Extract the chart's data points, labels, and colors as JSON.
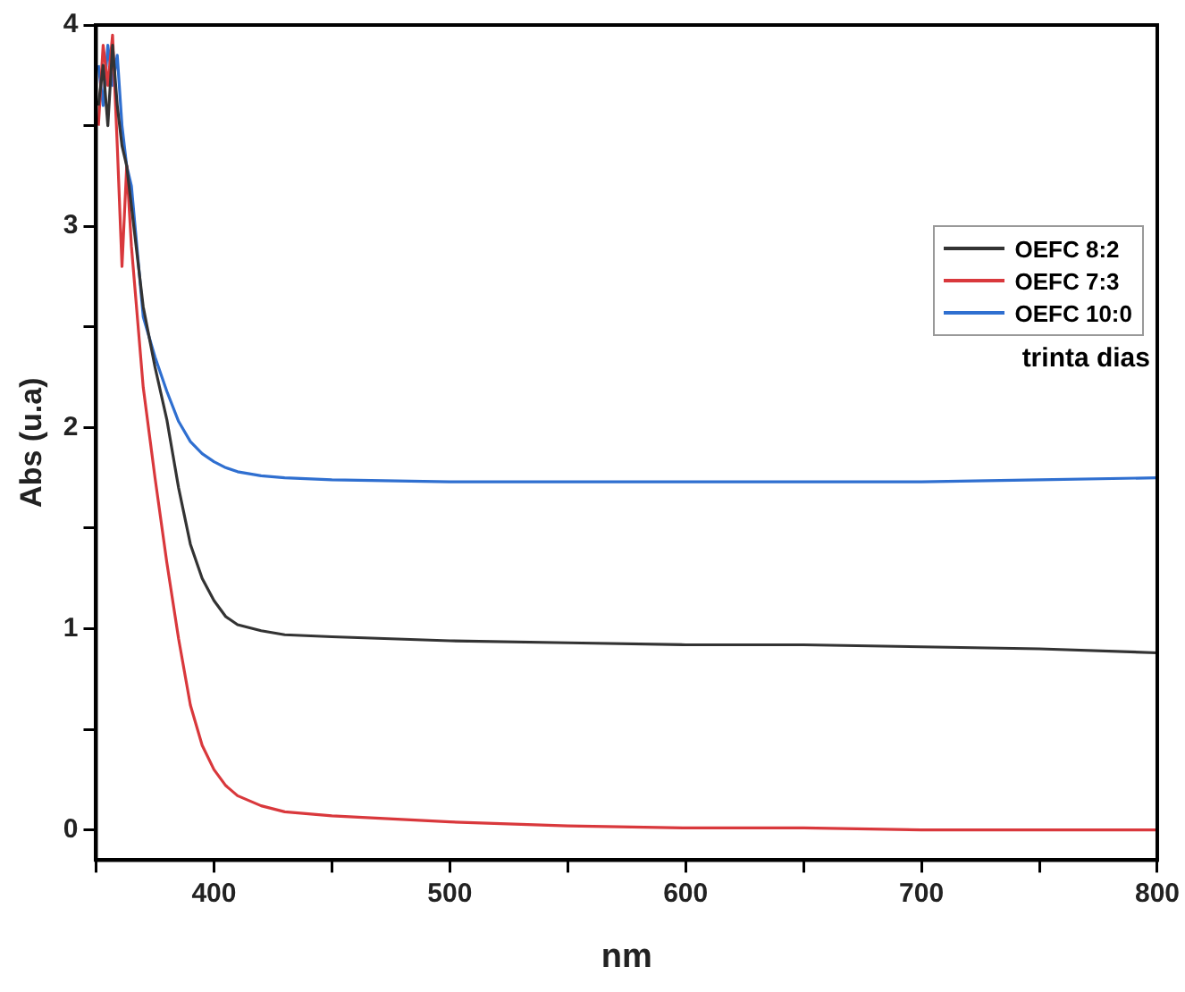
{
  "chart_data": {
    "type": "line",
    "xlabel": "nm",
    "ylabel": "Abs (u.a)",
    "xlim": [
      350,
      800
    ],
    "xticks": [
      {
        "value": 350,
        "label": null
      },
      400,
      {
        "value": 450,
        "label": null
      },
      500,
      {
        "value": 550,
        "label": null
      },
      600,
      {
        "value": 650,
        "label": null
      },
      700,
      {
        "value": 750,
        "label": null
      },
      800
    ],
    "ylim": [
      -0.15,
      4
    ],
    "yticks": [
      0,
      {
        "value": 0.5,
        "label": null
      },
      1,
      {
        "value": 1.5,
        "label": null
      },
      2,
      {
        "value": 2.5,
        "label": null
      },
      3,
      {
        "value": 3.5,
        "label": null
      },
      4
    ],
    "grid": false,
    "legend": "right",
    "marker": "none",
    "line_style": "solid",
    "annotations": [
      "trinta dias"
    ],
    "series": [
      {
        "name": "OEFC 8:2",
        "color": "#333333",
        "x": [
          351,
          353,
          355,
          357,
          359,
          361,
          363,
          365,
          370,
          375,
          380,
          385,
          390,
          395,
          400,
          405,
          410,
          420,
          430,
          450,
          500,
          550,
          600,
          650,
          700,
          750,
          800
        ],
        "values": [
          3.6,
          3.8,
          3.5,
          3.9,
          3.6,
          3.4,
          3.3,
          3.1,
          2.6,
          2.3,
          2.04,
          1.7,
          1.42,
          1.25,
          1.14,
          1.06,
          1.02,
          0.99,
          0.97,
          0.96,
          0.94,
          0.93,
          0.92,
          0.92,
          0.91,
          0.9,
          0.88
        ]
      },
      {
        "name": "OEFC 7:3",
        "color": "#d9383c",
        "x": [
          351,
          353,
          355,
          357,
          359,
          361,
          363,
          365,
          370,
          375,
          380,
          385,
          390,
          395,
          400,
          405,
          410,
          420,
          430,
          450,
          500,
          550,
          600,
          650,
          700,
          750,
          800
        ],
        "values": [
          3.5,
          3.9,
          3.7,
          3.95,
          3.4,
          2.8,
          3.3,
          2.9,
          2.2,
          1.75,
          1.33,
          0.95,
          0.62,
          0.42,
          0.3,
          0.22,
          0.17,
          0.12,
          0.09,
          0.07,
          0.04,
          0.02,
          0.01,
          0.01,
          0.0,
          0.0,
          0.0
        ]
      },
      {
        "name": "OEFC 10:0",
        "color": "#2f6fd0",
        "x": [
          351,
          353,
          355,
          357,
          359,
          361,
          363,
          365,
          370,
          375,
          380,
          385,
          390,
          395,
          400,
          405,
          410,
          420,
          430,
          450,
          500,
          550,
          600,
          650,
          700,
          750,
          800
        ],
        "values": [
          3.8,
          3.6,
          3.9,
          3.7,
          3.85,
          3.5,
          3.3,
          3.2,
          2.55,
          2.35,
          2.18,
          2.03,
          1.93,
          1.87,
          1.83,
          1.8,
          1.78,
          1.76,
          1.75,
          1.74,
          1.73,
          1.73,
          1.73,
          1.73,
          1.73,
          1.74,
          1.75
        ]
      }
    ]
  }
}
